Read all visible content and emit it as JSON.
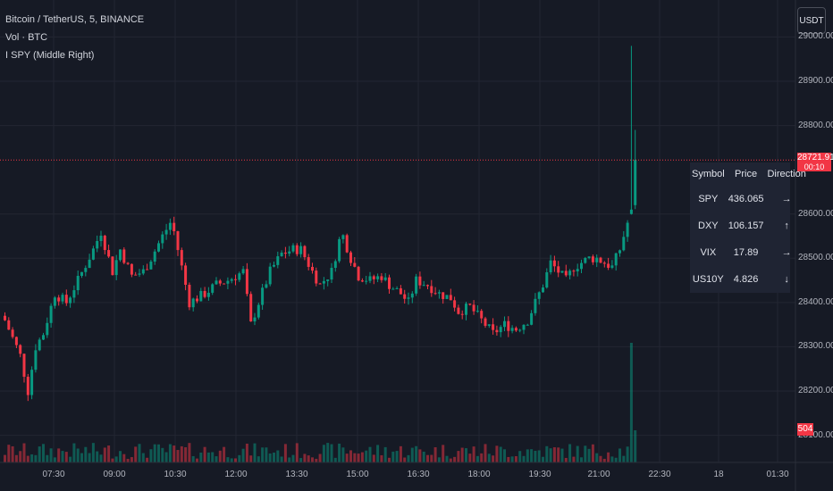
{
  "legend": {
    "main": "Bitcoin / TetherUS, 5, BINANCE",
    "vol": "Vol · BTC",
    "indicator": "I SPY (Middle Right)"
  },
  "currency_button": "USDT",
  "price_scale": {
    "ticks": [
      "29000.00",
      "28900.00",
      "28800.00",
      "28600.00",
      "28500.00",
      "28400.00",
      "28300.00",
      "28200.00",
      "28100.00"
    ],
    "current_price": "28721.91",
    "countdown": "00:10",
    "volume_value": "504"
  },
  "time_scale": {
    "ticks": [
      "07:30",
      "09:00",
      "10:30",
      "12:00",
      "13:30",
      "15:00",
      "16:30",
      "18:00",
      "19:30",
      "21:00",
      "22:30",
      "18",
      "01:30"
    ]
  },
  "table": {
    "headers": [
      "Symbol",
      "Price",
      "Direction"
    ],
    "rows": [
      {
        "symbol": "SPY",
        "price": "436.065",
        "direction": "→"
      },
      {
        "symbol": "DXY",
        "price": "106.157",
        "direction": "↑"
      },
      {
        "symbol": "VIX",
        "price": "17.89",
        "direction": "→"
      },
      {
        "symbol": "US10Y",
        "price": "4.826",
        "direction": "↓"
      }
    ]
  },
  "colors": {
    "up": "#089981",
    "down": "#f23645",
    "background": "#161a25",
    "grid": "#232632"
  },
  "chart_data": {
    "type": "candlestick",
    "symbol": "BTCUSDT",
    "interval": "5",
    "ylim": [
      28080,
      29030
    ],
    "price_line": 28721.91,
    "anchors_close": [
      [
        0,
        28360
      ],
      [
        4,
        28280
      ],
      [
        6,
        28200
      ],
      [
        8,
        28300
      ],
      [
        10,
        28330
      ],
      [
        13,
        28420
      ],
      [
        16,
        28400
      ],
      [
        19,
        28450
      ],
      [
        23,
        28520
      ],
      [
        25,
        28560
      ],
      [
        28,
        28470
      ],
      [
        30,
        28520
      ],
      [
        33,
        28460
      ],
      [
        36,
        28470
      ],
      [
        38,
        28500
      ],
      [
        41,
        28550
      ],
      [
        43,
        28580
      ],
      [
        44,
        28560
      ],
      [
        46,
        28480
      ],
      [
        48,
        28400
      ],
      [
        52,
        28420
      ],
      [
        55,
        28440
      ],
      [
        58,
        28450
      ],
      [
        62,
        28470
      ],
      [
        64,
        28350
      ],
      [
        66,
        28400
      ],
      [
        69,
        28470
      ],
      [
        72,
        28510
      ],
      [
        75,
        28520
      ],
      [
        77,
        28520
      ],
      [
        80,
        28470
      ],
      [
        82,
        28440
      ],
      [
        85,
        28470
      ],
      [
        87,
        28540
      ],
      [
        88,
        28550
      ],
      [
        90,
        28500
      ],
      [
        92,
        28460
      ],
      [
        95,
        28450
      ],
      [
        98,
        28460
      ],
      [
        100,
        28440
      ],
      [
        103,
        28420
      ],
      [
        105,
        28400
      ],
      [
        107,
        28450
      ],
      [
        110,
        28440
      ],
      [
        113,
        28420
      ],
      [
        116,
        28410
      ],
      [
        118,
        28380
      ],
      [
        121,
        28390
      ],
      [
        124,
        28360
      ],
      [
        127,
        28330
      ],
      [
        130,
        28350
      ],
      [
        133,
        28340
      ],
      [
        136,
        28360
      ],
      [
        138,
        28400
      ],
      [
        140,
        28440
      ],
      [
        142,
        28490
      ],
      [
        144,
        28470
      ],
      [
        146,
        28450
      ],
      [
        148,
        28480
      ],
      [
        150,
        28490
      ],
      [
        152,
        28500
      ],
      [
        154,
        28500
      ],
      [
        156,
        28490
      ],
      [
        158,
        28480
      ],
      [
        160,
        28520
      ],
      [
        162,
        28580
      ],
      [
        163,
        28600
      ],
      [
        164,
        28721.91
      ]
    ],
    "spike_wick_high": 28980,
    "volume_highlight": [
      504
    ]
  }
}
